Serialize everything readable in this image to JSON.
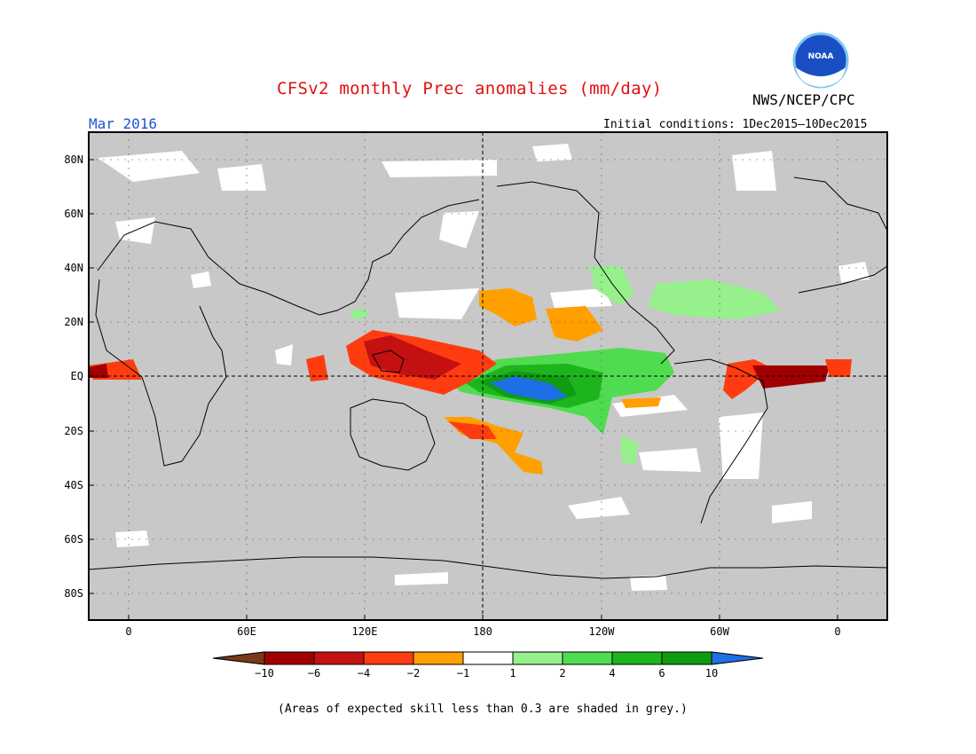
{
  "title": "CFSv2 monthly Prec anomalies (mm/day)",
  "agency": "NWS/NCEP/CPC",
  "logo_text": "NOAA",
  "valid_month": "Mar 2016",
  "initial_conditions": "Initial conditions: 1Dec2015–10Dec2015",
  "footnote": "(Areas of expected skill less than 0.3 are shaded in grey.)",
  "lat_labels": [
    "80N",
    "60N",
    "40N",
    "20N",
    "EQ",
    "20S",
    "40S",
    "60S",
    "80S"
  ],
  "lon_labels": [
    "0",
    "60E",
    "120E",
    "180",
    "120W",
    "60W",
    "0"
  ],
  "legend": {
    "ticks": [
      "−10",
      "−6",
      "−4",
      "−2",
      "−1",
      "1",
      "2",
      "4",
      "6",
      "10"
    ],
    "colors": [
      "#7a3a1a",
      "#a00000",
      "#c41010",
      "#ff3c10",
      "#ffa000",
      "#ffffff",
      "#96f08c",
      "#50dc50",
      "#1eb41e",
      "#109c10",
      "#1e6ee6"
    ]
  },
  "colors": {
    "skill_mask_grey": "#c8c8c8",
    "title_red": "#e01010",
    "month_blue": "#1a55d8"
  }
}
